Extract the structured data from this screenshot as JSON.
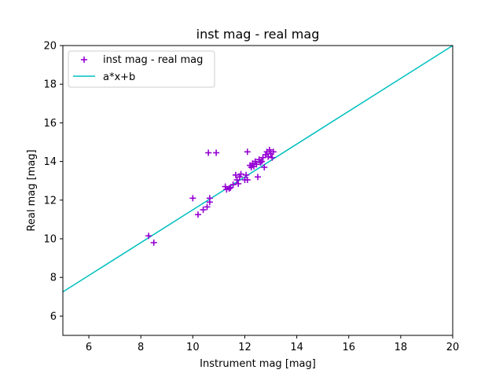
{
  "chart_data": {
    "type": "scatter",
    "title": "inst mag - real mag",
    "xlabel": "Instrument mag [mag]",
    "ylabel": "Real mag [mag]",
    "xlim": [
      5,
      20
    ],
    "ylim": [
      5,
      20
    ],
    "xticks": [
      6,
      8,
      10,
      12,
      14,
      16,
      18,
      20
    ],
    "yticks": [
      6,
      8,
      10,
      12,
      14,
      16,
      18,
      20
    ],
    "grid": false,
    "legend_position": "top-left",
    "series": [
      {
        "name": "inst mag - real mag",
        "kind": "scatter",
        "marker": "+",
        "color": "#9400D3",
        "points": [
          [
            8.3,
            10.15
          ],
          [
            8.5,
            9.8
          ],
          [
            10.0,
            12.1
          ],
          [
            10.2,
            11.25
          ],
          [
            10.4,
            11.5
          ],
          [
            10.55,
            11.65
          ],
          [
            10.6,
            14.45
          ],
          [
            10.65,
            11.9
          ],
          [
            10.65,
            12.1
          ],
          [
            10.9,
            14.45
          ],
          [
            11.25,
            12.7
          ],
          [
            11.3,
            12.55
          ],
          [
            11.4,
            12.6
          ],
          [
            11.45,
            12.65
          ],
          [
            11.55,
            12.8
          ],
          [
            11.65,
            13.3
          ],
          [
            11.7,
            13.05
          ],
          [
            11.75,
            12.85
          ],
          [
            11.8,
            13.2
          ],
          [
            11.85,
            13.35
          ],
          [
            12.0,
            13.05
          ],
          [
            12.05,
            13.3
          ],
          [
            12.1,
            13.05
          ],
          [
            12.1,
            14.5
          ],
          [
            12.2,
            13.8
          ],
          [
            12.25,
            13.7
          ],
          [
            12.3,
            13.9
          ],
          [
            12.35,
            13.75
          ],
          [
            12.4,
            14.0
          ],
          [
            12.45,
            13.85
          ],
          [
            12.5,
            13.2
          ],
          [
            12.55,
            14.1
          ],
          [
            12.6,
            13.95
          ],
          [
            12.65,
            14.0
          ],
          [
            12.7,
            14.2
          ],
          [
            12.75,
            13.7
          ],
          [
            12.8,
            14.35
          ],
          [
            12.85,
            14.5
          ],
          [
            12.9,
            14.25
          ],
          [
            12.95,
            14.6
          ],
          [
            13.0,
            14.4
          ],
          [
            13.05,
            14.2
          ],
          [
            13.1,
            14.5
          ]
        ]
      },
      {
        "name": "a*x+b",
        "kind": "line",
        "color": "#00BFBF",
        "points": [
          [
            5,
            7.25
          ],
          [
            20,
            20.0
          ]
        ]
      }
    ]
  }
}
